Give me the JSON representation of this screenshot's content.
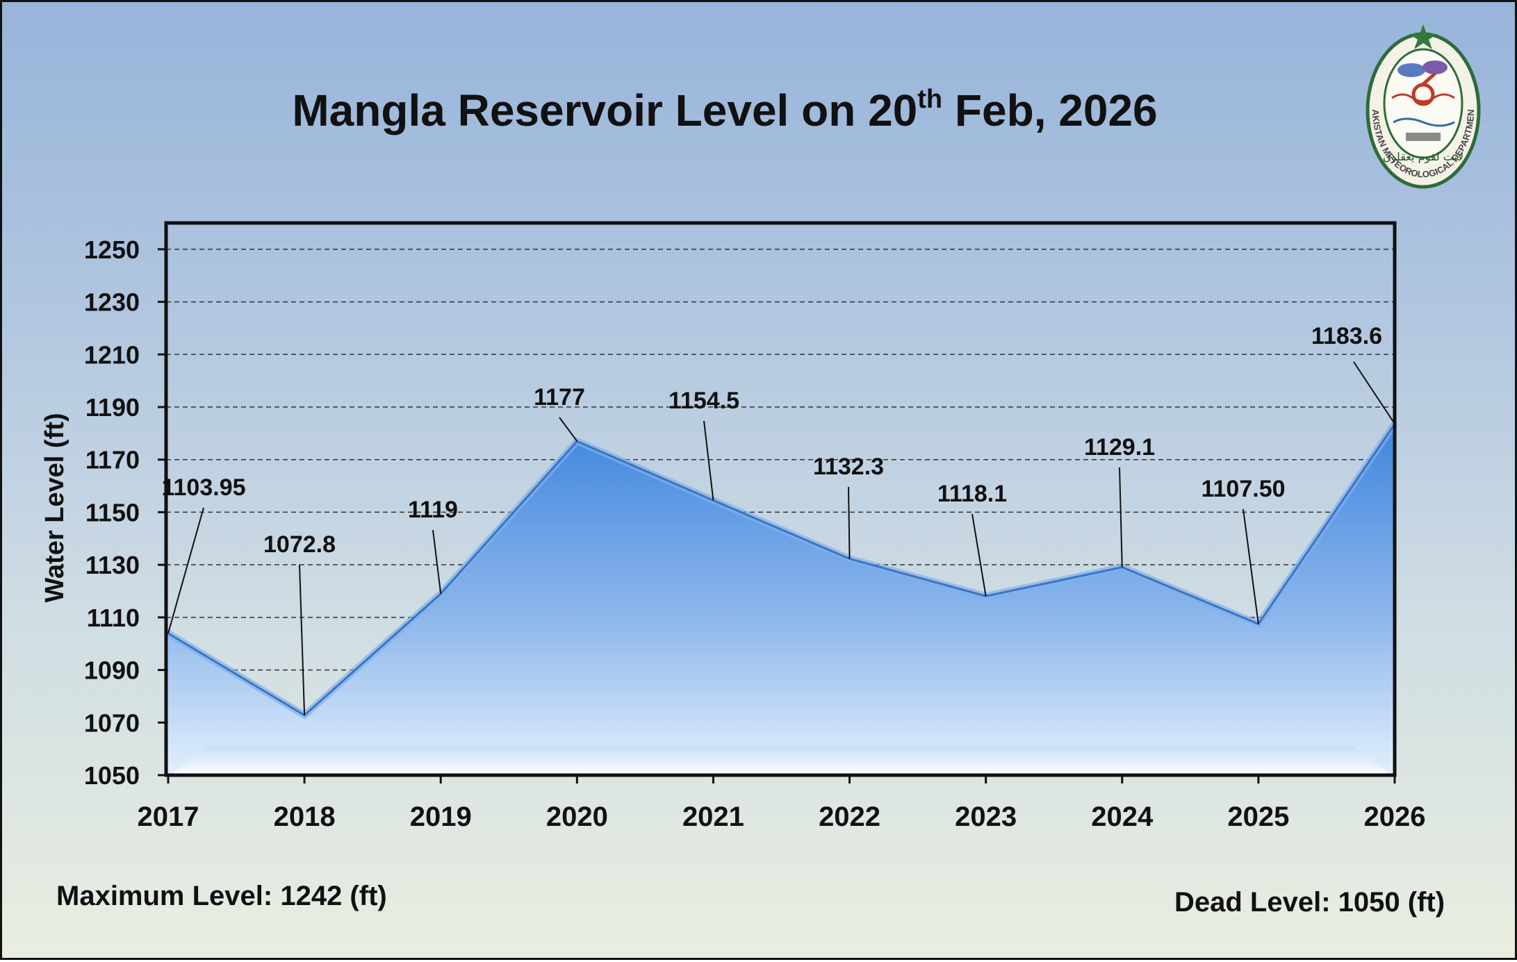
{
  "chart_data": {
    "type": "area",
    "title_main": "Mangla Reservoir Level on 20",
    "title_sup": "th",
    "title_tail": " Feb, 2026",
    "ylabel": "Water Level (ft)",
    "xlabel": "",
    "ylim": [
      1050,
      1260
    ],
    "yticks": [
      "1050",
      "1070",
      "1090",
      "1110",
      "1130",
      "1150",
      "1170",
      "1190",
      "1210",
      "1230",
      "1250"
    ],
    "categories": [
      "2017",
      "2018",
      "2019",
      "2020",
      "2021",
      "2022",
      "2023",
      "2024",
      "2025",
      "2026"
    ],
    "values": [
      1103.95,
      1072.8,
      1119,
      1177,
      1154.5,
      1132.3,
      1118.1,
      1129.1,
      1107.5,
      1183.6
    ],
    "labels": [
      "1103.95",
      "1072.8",
      "1119",
      "1177",
      "1154.5",
      "1132.3",
      "1118.1",
      "1129.1",
      "1107.50",
      "1183.6"
    ],
    "grid": true,
    "grid_style": "dashed",
    "colors": {
      "fill_top": "#3f86de",
      "fill_bottom": "#dcecfb",
      "line": "#4a82cf"
    }
  },
  "footer": {
    "max_level": "Maximum Level: 1242 (ft)",
    "dead_level": "Dead Level: 1050 (ft)"
  },
  "logo": {
    "text": "PAKISTAN METEOROLOGICAL DEPARTMENT",
    "motto": "لایت لقوم یعقلون"
  }
}
